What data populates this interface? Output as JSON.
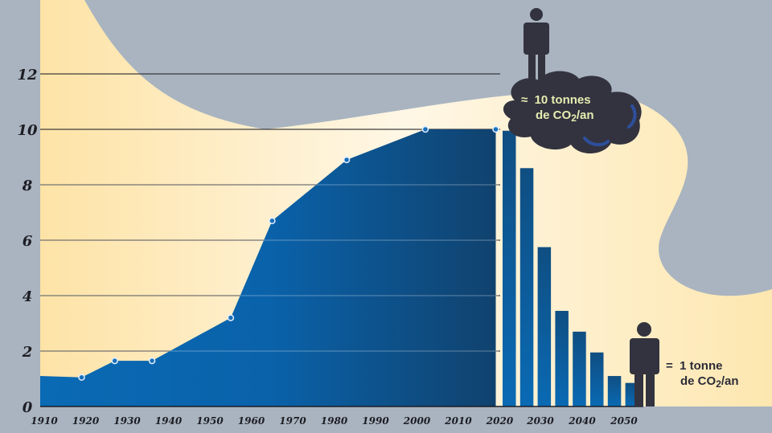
{
  "chart_data": {
    "type": "area+bar",
    "title": "",
    "xlabel": "",
    "ylabel": "",
    "ylim": [
      0,
      13
    ],
    "xlim": [
      1910,
      2055
    ],
    "y_ticks": [
      "0",
      "2",
      "4",
      "6",
      "8",
      "10",
      "12"
    ],
    "x_ticks": [
      "1910",
      "1920",
      "1930",
      "1940",
      "1950",
      "1960",
      "1970",
      "1980",
      "1990",
      "2000",
      "2010",
      "2020",
      "2030",
      "2040",
      "2050"
    ],
    "grid": true,
    "historical": {
      "type": "area",
      "x": [
        1910,
        1920,
        1928,
        1937,
        1956,
        1966,
        1984,
        2003,
        2020
      ],
      "y": [
        1.1,
        1.05,
        1.65,
        1.65,
        3.2,
        6.7,
        8.9,
        10.0,
        10.0
      ],
      "markers": [
        false,
        true,
        true,
        true,
        true,
        true,
        true,
        true,
        true
      ]
    },
    "projection": {
      "type": "bar",
      "x": [
        2020,
        2025,
        2030,
        2035,
        2040,
        2045,
        2050,
        2055
      ],
      "y": [
        9.95,
        8.6,
        5.75,
        3.45,
        2.7,
        1.95,
        1.1,
        0.85
      ]
    },
    "colors": {
      "background": "#a9b4c0",
      "highlight": "#fde6ac",
      "area_start": "#0a6ab4",
      "area_end": "#0f4270",
      "cloud": "#33333f",
      "person": "#33333f",
      "cloud_text": "#e6ecb0"
    }
  },
  "annotations": {
    "cloud": {
      "prefix": "≈",
      "line1": "10 tonnes",
      "line2_a": "de CO",
      "line2_sub": "2",
      "line2_b": "/an"
    },
    "legend": {
      "prefix": "=",
      "line1": "1 tonne",
      "line2_a": "de CO",
      "line2_sub": "2",
      "line2_b": "/an"
    }
  },
  "icons": [
    "person-icon",
    "cloud-icon"
  ]
}
